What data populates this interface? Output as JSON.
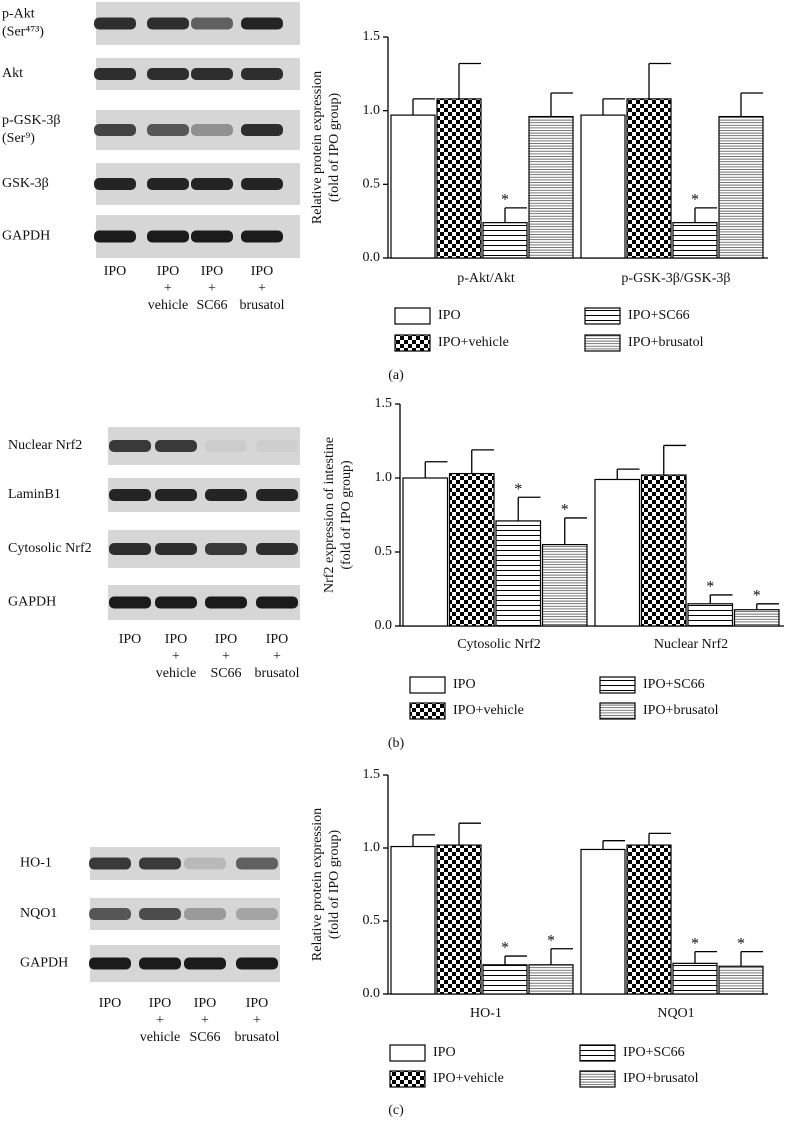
{
  "panels": [
    {
      "caption": "(a)",
      "blot_rows": [
        [
          "p-Akt",
          "(Ser⁴⁷³)"
        ],
        [
          "Akt"
        ],
        [
          "p-GSK-3β",
          "(Ser⁹)"
        ],
        [
          "GSK-3β"
        ],
        [
          "GAPDH"
        ]
      ],
      "lanes": [
        [
          "IPO"
        ],
        [
          "IPO",
          "+",
          "vehicle"
        ],
        [
          "IPO",
          "+",
          "SC66"
        ],
        [
          "IPO",
          "+",
          "brusatol"
        ]
      ]
    },
    {
      "caption": "(b)",
      "blot_rows": [
        [
          "Nuclear Nrf2"
        ],
        [
          "LaminB1"
        ],
        [
          "Cytosolic Nrf2"
        ],
        [
          "GAPDH"
        ]
      ],
      "lanes": [
        [
          "IPO"
        ],
        [
          "IPO",
          "+",
          "vehicle"
        ],
        [
          "IPO",
          "+",
          "SC66"
        ],
        [
          "IPO",
          "+",
          "brusatol"
        ]
      ]
    },
    {
      "caption": "(c)",
      "blot_rows": [
        [
          "HO-1"
        ],
        [
          "NQO1"
        ],
        [
          "GAPDH"
        ]
      ],
      "lanes": [
        [
          "IPO"
        ],
        [
          "IPO",
          "+",
          "vehicle"
        ],
        [
          "IPO",
          "+",
          "SC66"
        ],
        [
          "IPO",
          "+",
          "brusatol"
        ]
      ]
    }
  ],
  "chart_data": [
    {
      "type": "bar",
      "ylabel": [
        "Relative protein expression",
        "(fold of IPO group)"
      ],
      "categories": [
        "p-Akt/Akt",
        "p-GSK-3β/GSK-3β"
      ],
      "ylim": [
        0,
        1.5
      ],
      "yticks": [
        {
          "value": 0,
          "label": "0.0"
        },
        0.5,
        {
          "value": 1,
          "label": "1.0"
        },
        1.5
      ],
      "legend": "bottom",
      "series": [
        {
          "name": "IPO",
          "color": "#000000",
          "pattern": "none",
          "values": [
            0.97,
            0.97
          ],
          "errors": [
            0.11,
            0.11
          ],
          "annotations": [
            null,
            null
          ]
        },
        {
          "name": "IPO+vehicle",
          "color": "#000000",
          "pattern": "checker",
          "values": [
            1.08,
            1.08
          ],
          "errors": [
            0.24,
            0.24
          ],
          "annotations": [
            null,
            null
          ]
        },
        {
          "name": "IPO+SC66",
          "color": "#000000",
          "pattern": "lines",
          "values": [
            0.24,
            0.24
          ],
          "errors": [
            0.1,
            0.1
          ],
          "annotations": [
            "*",
            "*"
          ]
        },
        {
          "name": "IPO+brusatol",
          "color": "#000000",
          "pattern": "fine-lines",
          "values": [
            0.96,
            0.96
          ],
          "errors": [
            0.16,
            0.16
          ],
          "annotations": [
            null,
            null
          ]
        }
      ]
    },
    {
      "type": "bar",
      "ylabel": [
        "Nrf2 expression of intestine",
        "(fold of IPO group)"
      ],
      "categories": [
        "Cytosolic Nrf2",
        "Nuclear Nrf2"
      ],
      "ylim": [
        0,
        1.5
      ],
      "yticks": [
        {
          "value": 0,
          "label": "0.0"
        },
        0.5,
        {
          "value": 1,
          "label": "1.0"
        },
        1.5
      ],
      "legend": "bottom",
      "series": [
        {
          "name": "IPO",
          "color": "#000000",
          "pattern": "none",
          "values": [
            1.0,
            0.99
          ],
          "errors": [
            0.11,
            0.07
          ],
          "annotations": [
            null,
            null
          ]
        },
        {
          "name": "IPO+vehicle",
          "color": "#000000",
          "pattern": "checker",
          "values": [
            1.03,
            1.02
          ],
          "errors": [
            0.16,
            0.2
          ],
          "annotations": [
            null,
            null
          ]
        },
        {
          "name": "IPO+SC66",
          "color": "#000000",
          "pattern": "lines",
          "values": [
            0.71,
            0.15
          ],
          "errors": [
            0.16,
            0.06
          ],
          "annotations": [
            "*",
            "*"
          ]
        },
        {
          "name": "IPO+brusatol",
          "color": "#000000",
          "pattern": "fine-lines",
          "values": [
            0.55,
            0.11
          ],
          "errors": [
            0.18,
            0.04
          ],
          "annotations": [
            "*",
            "*"
          ]
        }
      ]
    },
    {
      "type": "bar",
      "ylabel": [
        "Relative protein expression",
        "(fold of IPO group)"
      ],
      "categories": [
        "HO-1",
        "NQO1"
      ],
      "ylim": [
        0,
        1.5
      ],
      "yticks": [
        {
          "value": 0,
          "label": "0.0"
        },
        0.5,
        {
          "value": 1,
          "label": "1.0"
        },
        1.5
      ],
      "legend": "bottom",
      "series": [
        {
          "name": "IPO",
          "color": "#000000",
          "pattern": "none",
          "values": [
            1.01,
            0.99
          ],
          "errors": [
            0.08,
            0.06
          ],
          "annotations": [
            null,
            null
          ]
        },
        {
          "name": "IPO+vehicle",
          "color": "#000000",
          "pattern": "checker",
          "values": [
            1.02,
            1.02
          ],
          "errors": [
            0.15,
            0.08
          ],
          "annotations": [
            null,
            null
          ]
        },
        {
          "name": "IPO+SC66",
          "color": "#000000",
          "pattern": "lines",
          "values": [
            0.2,
            0.21
          ],
          "errors": [
            0.06,
            0.08
          ],
          "annotations": [
            "*",
            "*"
          ]
        },
        {
          "name": "IPO+brusatol",
          "color": "#000000",
          "pattern": "fine-lines",
          "values": [
            0.2,
            0.19
          ],
          "errors": [
            0.11,
            0.1
          ],
          "annotations": [
            "*",
            "*"
          ]
        }
      ]
    }
  ]
}
